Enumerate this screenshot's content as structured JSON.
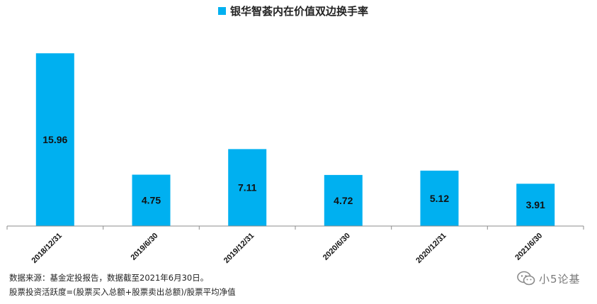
{
  "chart_data": {
    "type": "bar",
    "legend": [
      "银华智荟内在价值双边换手率"
    ],
    "legend_position": "top-center",
    "categories": [
      "2018/12/31",
      "2019/6/30",
      "2019/12/31",
      "2020/6/30",
      "2020/12/31",
      "2021/6/30"
    ],
    "series": [
      {
        "name": "银华智荟内在价值双边换手率",
        "values": [
          15.96,
          4.75,
          7.11,
          4.72,
          5.12,
          3.91
        ]
      }
    ],
    "data_labels": [
      "15.96",
      "4.75",
      "7.11",
      "4.72",
      "5.12",
      "3.91"
    ],
    "xlabel": "",
    "ylabel": "",
    "y_axis_visible": false,
    "ylim": [
      0,
      16.5
    ],
    "grid": false,
    "color": "#00B0F0"
  },
  "footnotes": [
    "数据来源：基金定投报告，数据截至2021年6月30日。",
    "股票投资活跃度=(股票买入总额+股票卖出总额)/股票平均净值"
  ],
  "watermark": {
    "text": "小5论基",
    "icon": "wechat-icon"
  }
}
